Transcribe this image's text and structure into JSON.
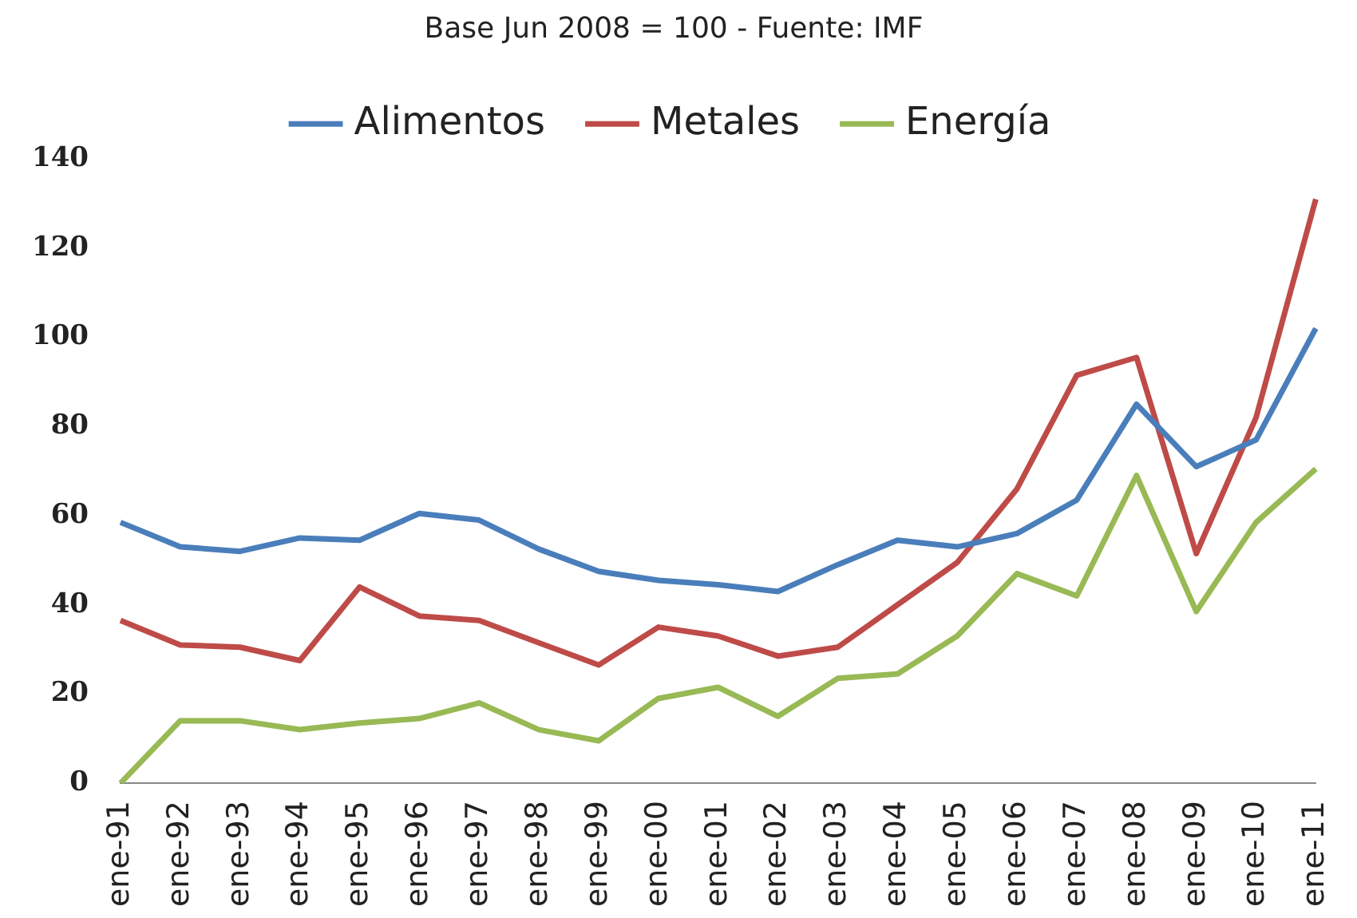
{
  "chart_data": {
    "type": "line",
    "subtitle": "Base Jun 2008 = 100 - Fuente: IMF",
    "categories": [
      "ene-91",
      "ene-92",
      "ene-93",
      "ene-94",
      "ene-95",
      "ene-96",
      "ene-97",
      "ene-98",
      "ene-99",
      "ene-00",
      "ene-01",
      "ene-02",
      "ene-03",
      "ene-04",
      "ene-05",
      "ene-06",
      "ene-07",
      "ene-08",
      "ene-09",
      "ene-10",
      "ene-11"
    ],
    "series": [
      {
        "name": "Alimentos",
        "color": "#4a7ebb",
        "values": [
          58.5,
          53,
          52,
          55,
          54.5,
          60.5,
          59,
          52.5,
          47.5,
          45.5,
          44.5,
          43,
          49,
          54.5,
          53,
          56,
          63.5,
          85,
          71,
          77,
          102
        ]
      },
      {
        "name": "Metales",
        "color": "#be4b48",
        "values": [
          36.5,
          31,
          30.5,
          27.5,
          44,
          37.5,
          36.5,
          31.5,
          26.5,
          35,
          33,
          28.5,
          30.5,
          40,
          49.5,
          66,
          91.5,
          95.5,
          51.5,
          82,
          131
        ]
      },
      {
        "name": "Energía",
        "color": "#98b954",
        "values": [
          0,
          14,
          14,
          12,
          13.5,
          14.5,
          18,
          12,
          9.5,
          19,
          21.5,
          15,
          23.5,
          24.5,
          33,
          47,
          42,
          69,
          38.5,
          58.5,
          70.5
        ]
      }
    ],
    "ylim": [
      0,
      140
    ],
    "yticks": [
      0,
      20,
      40,
      60,
      80,
      100,
      120,
      140
    ],
    "grid": false,
    "legend": "top",
    "marker": "none",
    "line_style": "solid"
  }
}
